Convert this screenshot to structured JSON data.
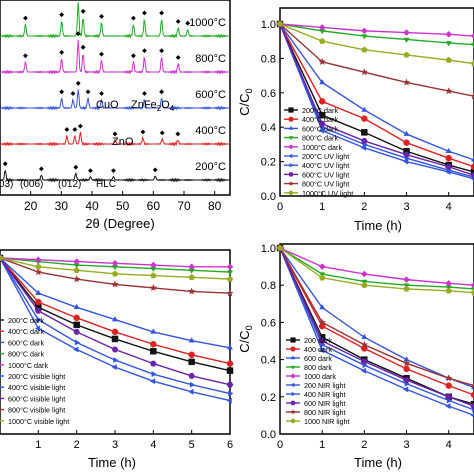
{
  "chart_data": [
    {
      "type": "line",
      "panel": "xrd",
      "xlabel": "2θ (Degree)",
      "ylabel": "",
      "xlim": [
        10,
        85
      ],
      "xticks": [
        20,
        30,
        40,
        50,
        60,
        70,
        80
      ],
      "grid": false,
      "series": [
        {
          "name": "1000°C",
          "color": "#22aa22",
          "offset": 4,
          "peaks": [
            [
              18.3,
              0.35
            ],
            [
              30.1,
              0.45
            ],
            [
              35.5,
              1.0
            ],
            [
              37.1,
              0.55
            ],
            [
              43.1,
              0.4
            ],
            [
              53.5,
              0.35
            ],
            [
              57.1,
              0.5
            ],
            [
              62.7,
              0.5
            ],
            [
              68.1,
              0.25
            ],
            [
              71.2,
              0.2
            ]
          ]
        },
        {
          "name": "800°C",
          "color": "#cc33cc",
          "offset": 3,
          "peaks": [
            [
              18.3,
              0.3
            ],
            [
              30.1,
              0.4
            ],
            [
              35.5,
              0.95
            ],
            [
              37.1,
              0.55
            ],
            [
              43.1,
              0.35
            ],
            [
              53.5,
              0.3
            ],
            [
              57.1,
              0.45
            ],
            [
              62.7,
              0.45
            ],
            [
              68.1,
              0.25
            ]
          ]
        },
        {
          "name": "600°C",
          "color": "#3355dd",
          "offset": 2,
          "peaks": [
            [
              30.1,
              0.3
            ],
            [
              33.8,
              0.25
            ],
            [
              35.5,
              0.55
            ],
            [
              38.7,
              0.3
            ],
            [
              43.1,
              0.25
            ],
            [
              57.1,
              0.25
            ],
            [
              62.7,
              0.3
            ]
          ]
        },
        {
          "name": "400°C",
          "color": "#dd2222",
          "offset": 1,
          "peaks": [
            [
              31.8,
              0.25
            ],
            [
              34.4,
              0.25
            ],
            [
              36.2,
              0.35
            ],
            [
              47.5,
              0.12
            ],
            [
              56.6,
              0.18
            ],
            [
              62.9,
              0.15
            ],
            [
              68.0,
              0.12
            ]
          ]
        },
        {
          "name": "200°C",
          "color": "#111111",
          "offset": 0,
          "peaks": [
            [
              11.7,
              0.3
            ],
            [
              23.5,
              0.15
            ],
            [
              34.7,
              0.2
            ],
            [
              39.5,
              0.1
            ],
            [
              47.0,
              0.1
            ],
            [
              60.6,
              0.12
            ]
          ]
        }
      ],
      "annotations": {
        "cuo": "CuO",
        "znfe": "ZnFe",
        "znfe_sub": "2",
        "znfe_o": "O",
        "znfe_o_sub": "4",
        "zno": "ZnO",
        "hkl_003": "(003)",
        "hkl_006": "(006)",
        "hkl_012": "(012)",
        "hlc": "HLC"
      }
    },
    {
      "type": "line",
      "panel": "uv",
      "xlabel": "Time (h)",
      "ylabel": "C/C",
      "ylabel_sub": "0",
      "xlim": [
        0,
        4.6
      ],
      "ylim": [
        0,
        1.0
      ],
      "xticks": [
        0,
        1,
        2,
        3,
        4
      ],
      "yticks": [
        0.0,
        0.2,
        0.4,
        0.6,
        0.8,
        1.0
      ],
      "grid": false,
      "legend": "bottom-left",
      "x": [
        0,
        1,
        2,
        3,
        4,
        4.6
      ],
      "series": [
        {
          "name": "200°C dark",
          "color": "#111111",
          "marker": "square",
          "values": [
            1.0,
            0.47,
            0.37,
            0.26,
            0.18,
            0.14
          ]
        },
        {
          "name": "400°C dark",
          "color": "#dd2222",
          "marker": "circle",
          "values": [
            1.0,
            0.55,
            0.45,
            0.31,
            0.22,
            0.17
          ]
        },
        {
          "name": "600°C dark",
          "color": "#3355dd",
          "marker": "triangle-up",
          "values": [
            1.0,
            0.66,
            0.5,
            0.36,
            0.26,
            0.21
          ]
        },
        {
          "name": "800°C dark",
          "color": "#22aa22",
          "marker": "triangle-down",
          "values": [
            1.0,
            0.96,
            0.93,
            0.91,
            0.89,
            0.88
          ]
        },
        {
          "name": "1000°C dark",
          "color": "#cc33cc",
          "marker": "diamond",
          "values": [
            1.0,
            0.98,
            0.96,
            0.95,
            0.94,
            0.93
          ]
        },
        {
          "name": "200°C UV light",
          "color": "#3355dd",
          "marker": "triangle-left",
          "values": [
            1.0,
            0.38,
            0.28,
            0.2,
            0.14,
            0.1
          ]
        },
        {
          "name": "400°C UV light",
          "color": "#3355dd",
          "marker": "triangle-right",
          "values": [
            1.0,
            0.4,
            0.3,
            0.22,
            0.15,
            0.11
          ]
        },
        {
          "name": "600°C UV light",
          "color": "#6a22aa",
          "marker": "hexagon",
          "values": [
            1.0,
            0.42,
            0.32,
            0.24,
            0.17,
            0.12
          ]
        },
        {
          "name": "800°C UV light",
          "color": "#993333",
          "marker": "star",
          "values": [
            1.0,
            0.78,
            0.72,
            0.66,
            0.61,
            0.58
          ]
        },
        {
          "name": "1000°C UV light",
          "color": "#99aa22",
          "marker": "pentagon",
          "values": [
            1.0,
            0.9,
            0.85,
            0.82,
            0.79,
            0.77
          ]
        }
      ]
    },
    {
      "type": "line",
      "panel": "visible",
      "xlabel": "Time (h)",
      "ylabel": "",
      "xlim": [
        0,
        6
      ],
      "ylim": [
        0,
        1.0
      ],
      "xticks": [
        1,
        2,
        3,
        4,
        5,
        6
      ],
      "grid": false,
      "legend": "bottom-left",
      "x": [
        0,
        1,
        2,
        3,
        4,
        5,
        6
      ],
      "series": [
        {
          "name": "200°C dark",
          "color": "#111111",
          "marker": "square",
          "values": [
            1.0,
            0.72,
            0.62,
            0.54,
            0.47,
            0.41,
            0.36
          ]
        },
        {
          "name": "400°C dark",
          "color": "#dd2222",
          "marker": "circle",
          "values": [
            1.0,
            0.75,
            0.66,
            0.58,
            0.51,
            0.45,
            0.4
          ]
        },
        {
          "name": "600°C dark",
          "color": "#3355dd",
          "marker": "triangle-up",
          "values": [
            1.0,
            0.8,
            0.72,
            0.65,
            0.58,
            0.53,
            0.49
          ]
        },
        {
          "name": "800°C dark",
          "color": "#22aa22",
          "marker": "triangle-down",
          "values": [
            1.0,
            0.98,
            0.96,
            0.95,
            0.94,
            0.93,
            0.92
          ]
        },
        {
          "name": "1000°C dark",
          "color": "#cc33cc",
          "marker": "diamond",
          "values": [
            1.0,
            0.99,
            0.98,
            0.97,
            0.96,
            0.95,
            0.95
          ]
        },
        {
          "name": "200°C visible light",
          "color": "#3355dd",
          "marker": "triangle-left",
          "values": [
            1.0,
            0.6,
            0.48,
            0.38,
            0.3,
            0.24,
            0.19
          ]
        },
        {
          "name": "400°C visible light",
          "color": "#3355dd",
          "marker": "triangle-right",
          "values": [
            1.0,
            0.65,
            0.52,
            0.42,
            0.34,
            0.28,
            0.23
          ]
        },
        {
          "name": "600°C visible light",
          "color": "#6a22aa",
          "marker": "hexagon",
          "values": [
            1.0,
            0.7,
            0.58,
            0.48,
            0.4,
            0.33,
            0.28
          ]
        },
        {
          "name": "800°C visible light",
          "color": "#993333",
          "marker": "star",
          "values": [
            1.0,
            0.92,
            0.88,
            0.85,
            0.83,
            0.81,
            0.8
          ]
        },
        {
          "name": "1000°C visible light",
          "color": "#99aa22",
          "marker": "pentagon",
          "values": [
            1.0,
            0.95,
            0.93,
            0.91,
            0.9,
            0.89,
            0.88
          ]
        }
      ]
    },
    {
      "type": "line",
      "panel": "nir",
      "xlabel": "Time (h)",
      "ylabel": "C/C",
      "ylabel_sub": "0",
      "xlim": [
        0,
        4.6
      ],
      "ylim": [
        0,
        1.0
      ],
      "xticks": [
        0,
        1,
        2,
        3,
        4
      ],
      "yticks": [
        0.0,
        0.2,
        0.4,
        0.6,
        0.8,
        1.0
      ],
      "grid": false,
      "legend": "bottom-left",
      "x": [
        0,
        1,
        2,
        3,
        4,
        4.6
      ],
      "series": [
        {
          "name": "200 dark",
          "color": "#111111",
          "marker": "square",
          "values": [
            1.0,
            0.52,
            0.4,
            0.3,
            0.2,
            0.16
          ]
        },
        {
          "name": "400 dark",
          "color": "#dd2222",
          "marker": "circle",
          "values": [
            1.0,
            0.58,
            0.46,
            0.35,
            0.26,
            0.21
          ]
        },
        {
          "name": "600 dark",
          "color": "#3355dd",
          "marker": "triangle-up",
          "values": [
            1.0,
            0.68,
            0.52,
            0.4,
            0.3,
            0.25
          ]
        },
        {
          "name": "800 dark",
          "color": "#22aa22",
          "marker": "triangle-down",
          "values": [
            1.0,
            0.86,
            0.82,
            0.8,
            0.79,
            0.78
          ]
        },
        {
          "name": "1000 dark",
          "color": "#cc33cc",
          "marker": "diamond",
          "values": [
            1.0,
            0.9,
            0.86,
            0.83,
            0.81,
            0.8
          ]
        },
        {
          "name": "200 NIR light",
          "color": "#3355dd",
          "marker": "triangle-left",
          "values": [
            1.0,
            0.45,
            0.34,
            0.24,
            0.15,
            0.1
          ]
        },
        {
          "name": "400 NIR light",
          "color": "#3355dd",
          "marker": "triangle-right",
          "values": [
            1.0,
            0.48,
            0.37,
            0.27,
            0.18,
            0.13
          ]
        },
        {
          "name": "600 NIR light",
          "color": "#6a22aa",
          "marker": "hexagon",
          "values": [
            1.0,
            0.5,
            0.39,
            0.29,
            0.2,
            0.15
          ]
        },
        {
          "name": "800 NIR light",
          "color": "#993333",
          "marker": "star",
          "values": [
            1.0,
            0.6,
            0.48,
            0.38,
            0.3,
            0.26
          ]
        },
        {
          "name": "1000 NIR light",
          "color": "#99aa22",
          "marker": "pentagon",
          "values": [
            1.0,
            0.84,
            0.8,
            0.78,
            0.77,
            0.76
          ]
        }
      ]
    }
  ]
}
